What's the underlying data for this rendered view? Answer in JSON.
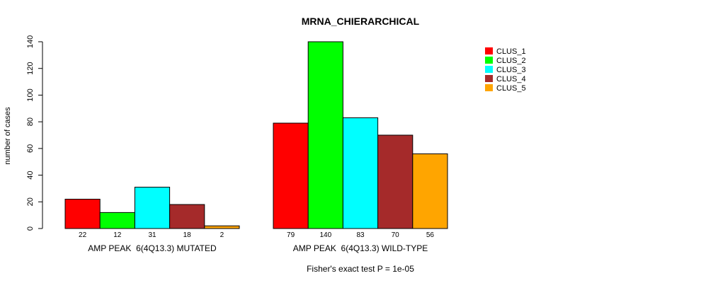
{
  "chart_data": {
    "type": "bar",
    "title": "MRNA_CHIERARCHICAL",
    "ylabel": "number of cases",
    "xlabel": "",
    "ylim": [
      0,
      140
    ],
    "yticks": [
      0,
      20,
      40,
      60,
      80,
      100,
      120,
      140
    ],
    "groups": [
      {
        "label": "AMP PEAK  6(4Q13.3) MUTATED",
        "values": [
          22,
          12,
          31,
          18,
          2
        ]
      },
      {
        "label": "AMP PEAK  6(4Q13.3) WILD-TYPE",
        "values": [
          79,
          140,
          83,
          70,
          56
        ]
      }
    ],
    "series": [
      {
        "name": "CLUS_1",
        "color": "#ff0000"
      },
      {
        "name": "CLUS_2",
        "color": "#00ff00"
      },
      {
        "name": "CLUS_3",
        "color": "#00ffff"
      },
      {
        "name": "CLUS_4",
        "color": "#a52a2a"
      },
      {
        "name": "CLUS_5",
        "color": "#ffa500"
      }
    ],
    "legend_position": "top-right",
    "footnote": "Fisher's exact test P = 1e-05"
  }
}
